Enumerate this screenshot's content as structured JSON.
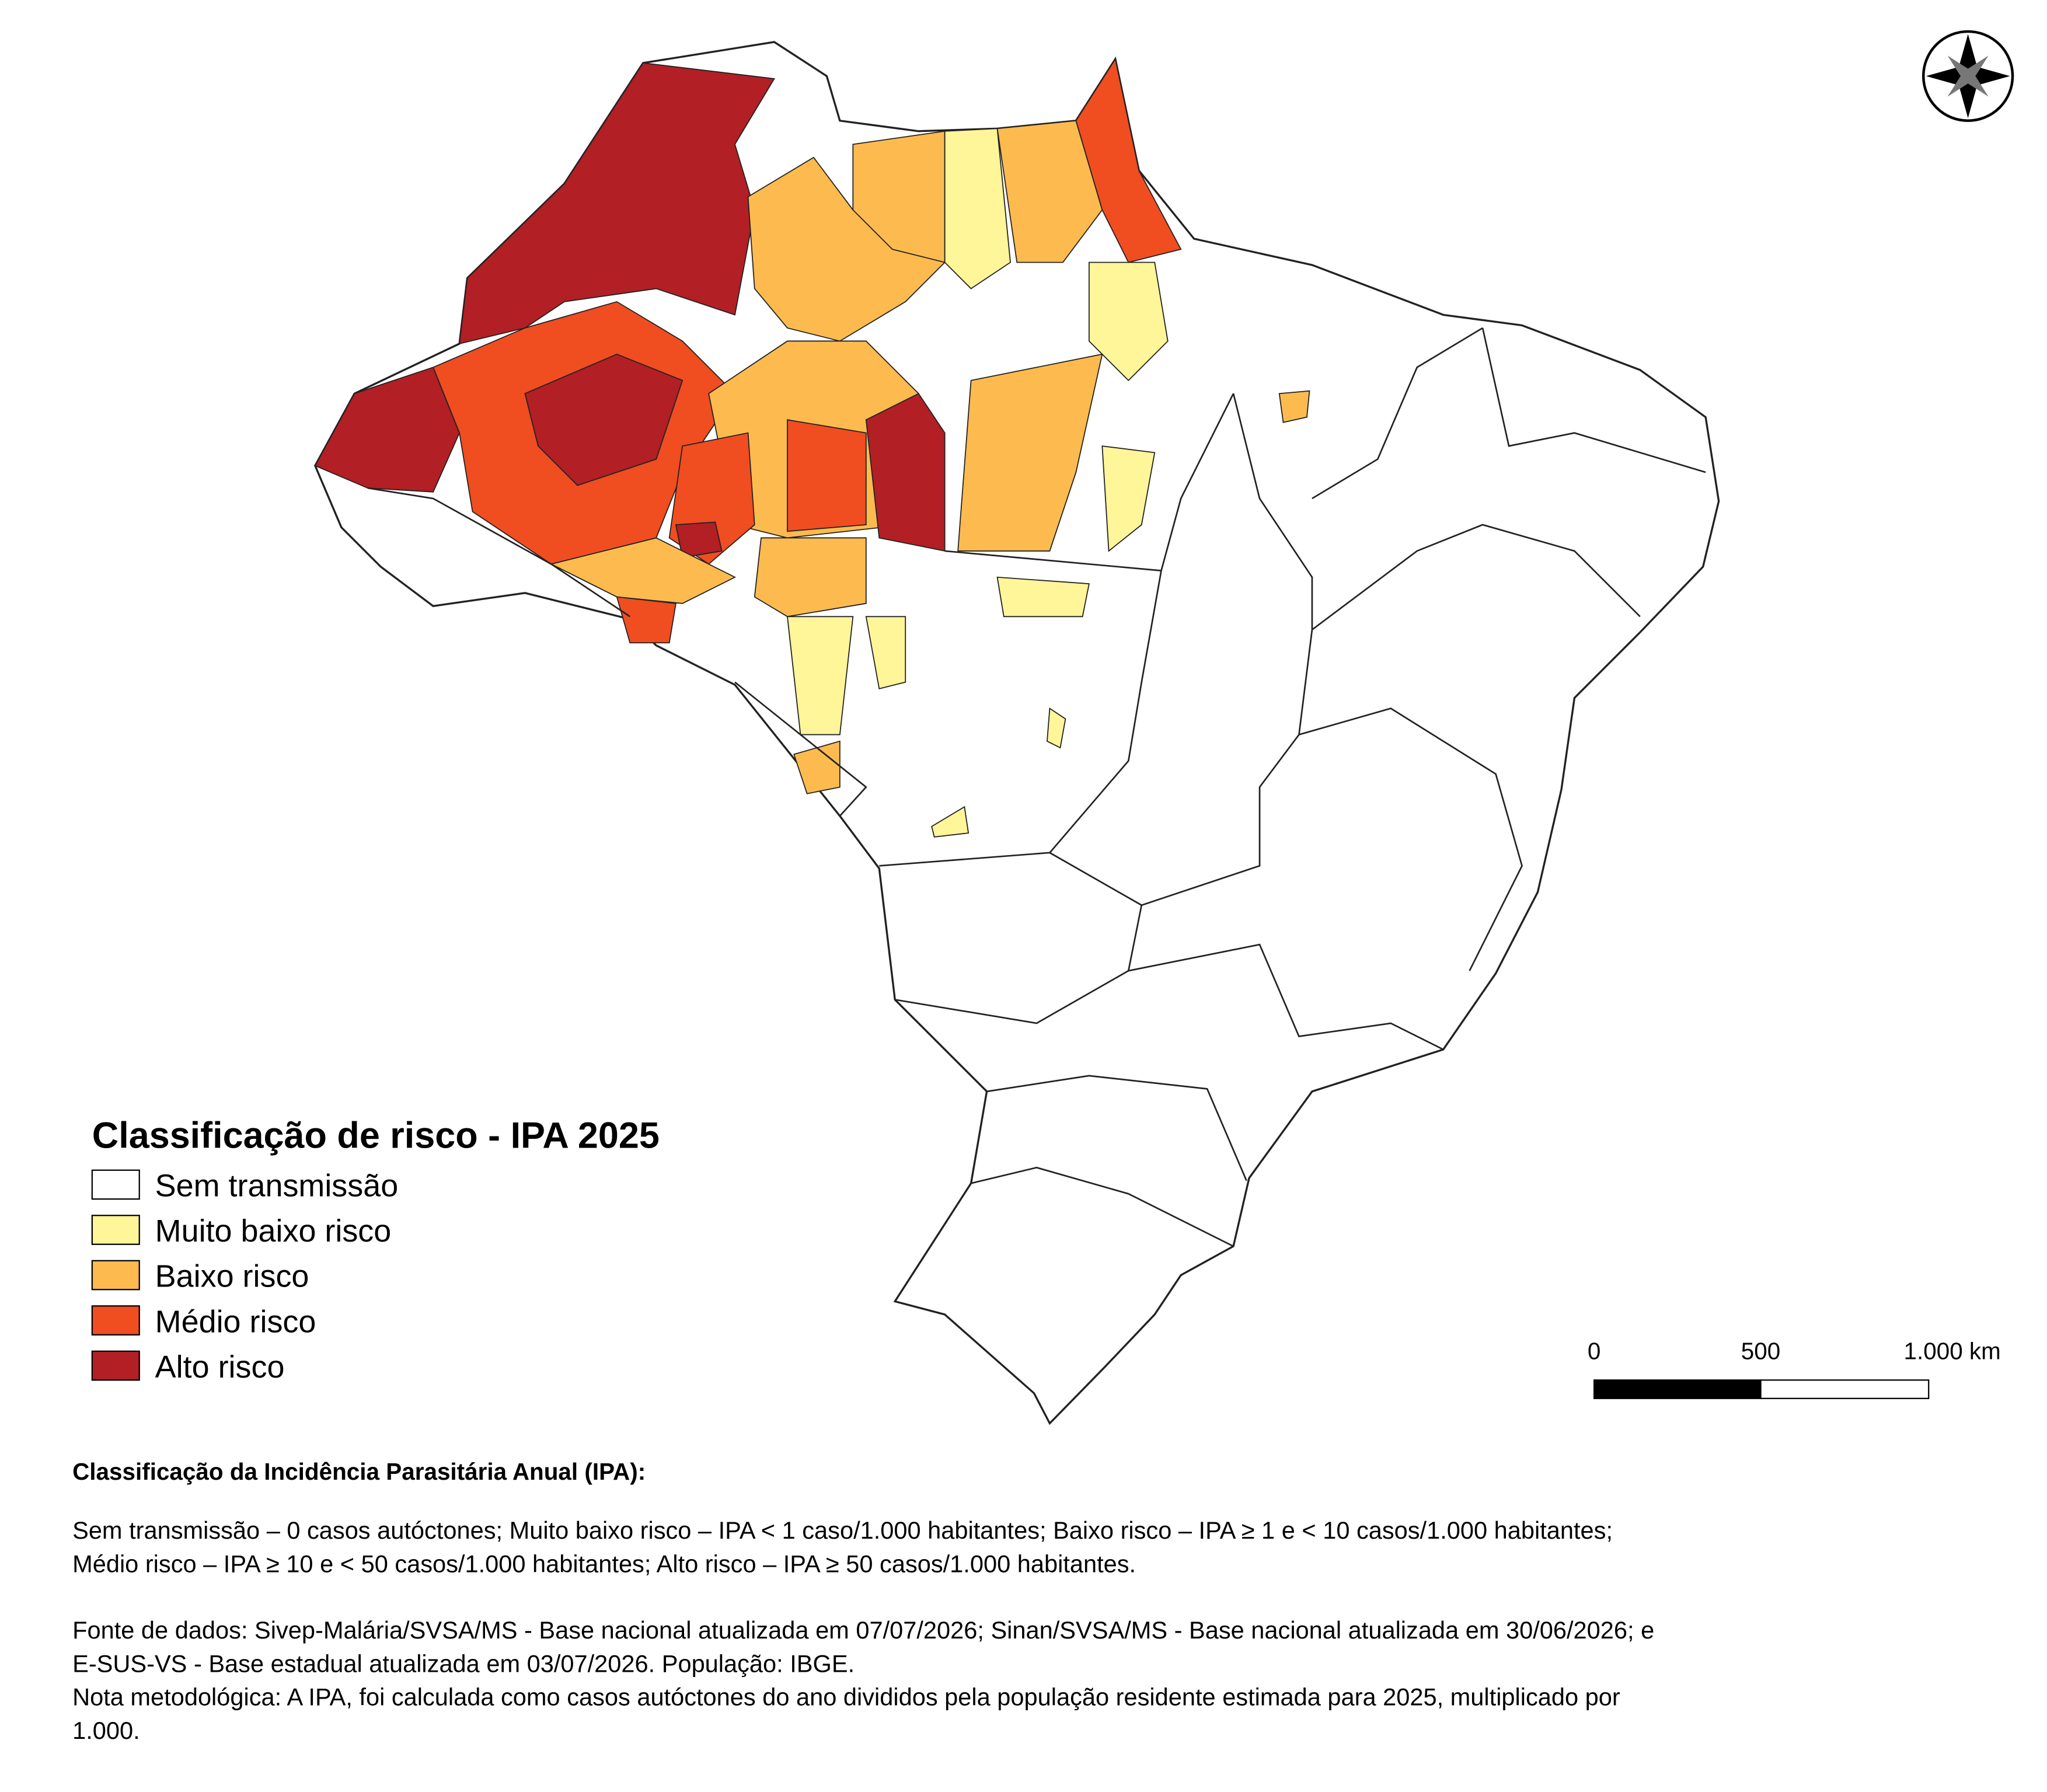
{
  "legend": {
    "title": "Classificação de risco - IPA 2025",
    "items": [
      {
        "label": "Sem transmissão",
        "color": "#ffffff"
      },
      {
        "label": "Muito baixo risco",
        "color": "#fff599"
      },
      {
        "label": "Baixo risco",
        "color": "#fdbb4f"
      },
      {
        "label": "Médio risco",
        "color": "#f04d21"
      },
      {
        "label": "Alto risco",
        "color": "#b21f24"
      }
    ]
  },
  "scale_bar": {
    "labels": [
      "0",
      "500",
      "1.000 km"
    ]
  },
  "notes": {
    "heading": "Classificação da Incidência Parasitária Anual (IPA):",
    "classification": [
      "Sem transmissão – 0 casos autóctones; Muito baixo risco – IPA < 1 caso/1.000 habitantes; Baixo risco – IPA ≥ 1 e < 10 casos/1.000 habitantes;",
      "Médio risco – IPA ≥ 10 e < 50 casos/1.000 habitantes; Alto risco – IPA ≥ 50 casos/1.000 habitantes."
    ],
    "source": [
      "Fonte de dados: Sivep-Malária/SVSA/MS - Base nacional atualizada em 07/07/2026; Sinan/SVSA/MS - Base nacional atualizada em 30/06/2026; e",
      "E-SUS-VS - Base estadual atualizada em 03/07/2026. População: IBGE.",
      "Nota metodológica: A IPA,  foi calculada como casos autóctones do ano divididos pela população residente estimada para 2025, multiplicado por",
      "1.000."
    ]
  }
}
